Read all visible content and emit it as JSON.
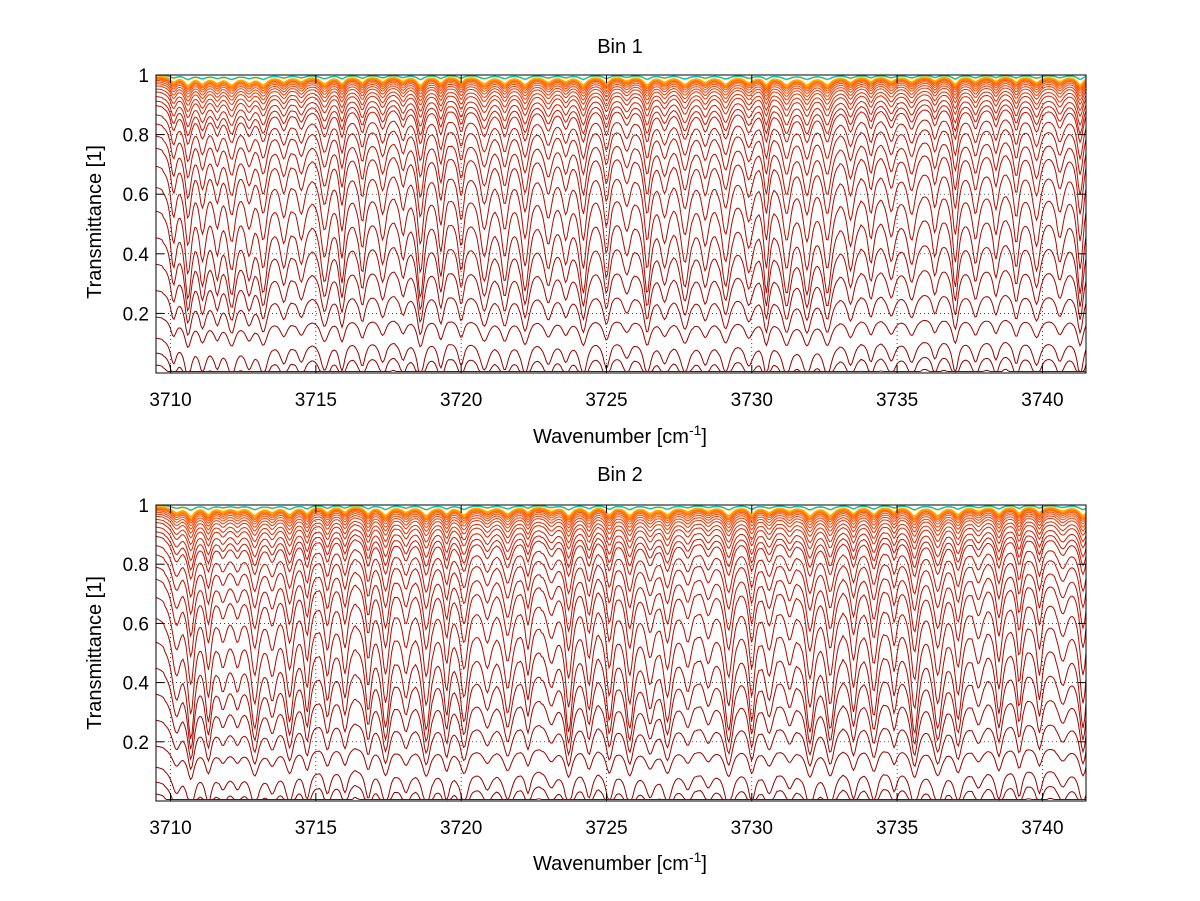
{
  "chart_data": [
    {
      "type": "line",
      "title": "Bin 1",
      "xlabel": "Wavenumber [cm",
      "xlabel_sup": "-1",
      "xlabel_end": "]",
      "ylabel": "Transmittance [1]",
      "xlim": [
        3709.5,
        3741.5
      ],
      "ylim": [
        0.0,
        1.0
      ],
      "x_ticks": [
        3710,
        3715,
        3720,
        3725,
        3730,
        3735,
        3740
      ],
      "y_ticks": [
        0.2,
        0.4,
        0.6,
        0.8,
        1
      ],
      "x_tick_labels": [
        "3710",
        "3715",
        "3720",
        "3725",
        "3730",
        "3735",
        "3740"
      ],
      "y_tick_labels": [
        "0.2",
        "0.4",
        "0.6",
        "0.8",
        "1"
      ],
      "grid": true,
      "series_count": 34,
      "series_baselines": [
        1.0,
        1.0,
        1.0,
        0.999,
        0.998,
        0.997,
        0.996,
        0.994,
        0.992,
        0.99,
        0.987,
        0.983,
        0.978,
        0.972,
        0.965,
        0.955,
        0.945,
        0.93,
        0.915,
        0.9,
        0.87,
        0.84,
        0.8,
        0.76,
        0.7,
        0.63,
        0.55,
        0.46,
        0.37,
        0.28,
        0.19,
        0.12,
        0.07,
        0.03
      ],
      "absorption_lines_cm-1": [
        3710.1,
        3710.6,
        3711.1,
        3711.6,
        3712.1,
        3712.7,
        3713.2,
        3713.9,
        3714.5,
        3715.3,
        3715.9,
        3716.6,
        3717.3,
        3718.0,
        3718.6,
        3719.3,
        3720.0,
        3720.8,
        3721.5,
        3722.2,
        3723.0,
        3723.6,
        3724.2,
        3725.0,
        3725.7,
        3726.4,
        3727.0,
        3727.7,
        3728.4,
        3729.1,
        3729.9,
        3730.5,
        3731.2,
        3731.9,
        3732.6,
        3733.4,
        3734.1,
        3734.8,
        3735.5,
        3736.3,
        3737.0,
        3737.7,
        3738.4,
        3739.1,
        3739.8,
        3740.6,
        3741.3
      ],
      "colors": {
        "dark": "#8b0000",
        "mid": "#ff4500",
        "high": "#ffcc00",
        "top": "#00c0c0"
      }
    },
    {
      "type": "line",
      "title": "Bin 2",
      "xlabel": "Wavenumber [cm",
      "xlabel_sup": "-1",
      "xlabel_end": "]",
      "ylabel": "Transmittance [1]",
      "xlim": [
        3709.5,
        3741.5
      ],
      "ylim": [
        0.0,
        1.0
      ],
      "x_ticks": [
        3710,
        3715,
        3720,
        3725,
        3730,
        3735,
        3740
      ],
      "y_ticks": [
        0.2,
        0.4,
        0.6,
        0.8,
        1
      ],
      "x_tick_labels": [
        "3710",
        "3715",
        "3720",
        "3725",
        "3730",
        "3735",
        "3740"
      ],
      "y_tick_labels": [
        "0.2",
        "0.4",
        "0.6",
        "0.8",
        "1"
      ],
      "grid": true,
      "series_count": 34,
      "series_baselines": [
        1.0,
        1.0,
        1.0,
        0.999,
        0.998,
        0.997,
        0.996,
        0.994,
        0.992,
        0.99,
        0.987,
        0.983,
        0.978,
        0.972,
        0.965,
        0.955,
        0.945,
        0.93,
        0.915,
        0.9,
        0.87,
        0.84,
        0.8,
        0.76,
        0.7,
        0.63,
        0.55,
        0.46,
        0.37,
        0.28,
        0.19,
        0.12,
        0.07,
        0.03
      ],
      "absorption_lines_cm-1": [
        3710.2,
        3710.7,
        3711.3,
        3711.8,
        3712.3,
        3712.9,
        3713.5,
        3714.1,
        3714.7,
        3715.4,
        3716.0,
        3716.8,
        3717.4,
        3718.1,
        3718.8,
        3719.5,
        3720.1,
        3720.9,
        3721.6,
        3722.3,
        3723.1,
        3723.7,
        3724.4,
        3725.1,
        3725.8,
        3726.5,
        3727.1,
        3727.8,
        3728.5,
        3729.2,
        3730.0,
        3730.6,
        3731.3,
        3732.0,
        3732.7,
        3733.5,
        3734.2,
        3734.9,
        3735.6,
        3736.4,
        3737.1,
        3737.8,
        3738.5,
        3739.2,
        3739.9,
        3740.7,
        3741.4
      ],
      "colors": {
        "dark": "#8b0000",
        "mid": "#ff4500",
        "high": "#ffcc00",
        "top": "#00c0c0"
      }
    }
  ]
}
